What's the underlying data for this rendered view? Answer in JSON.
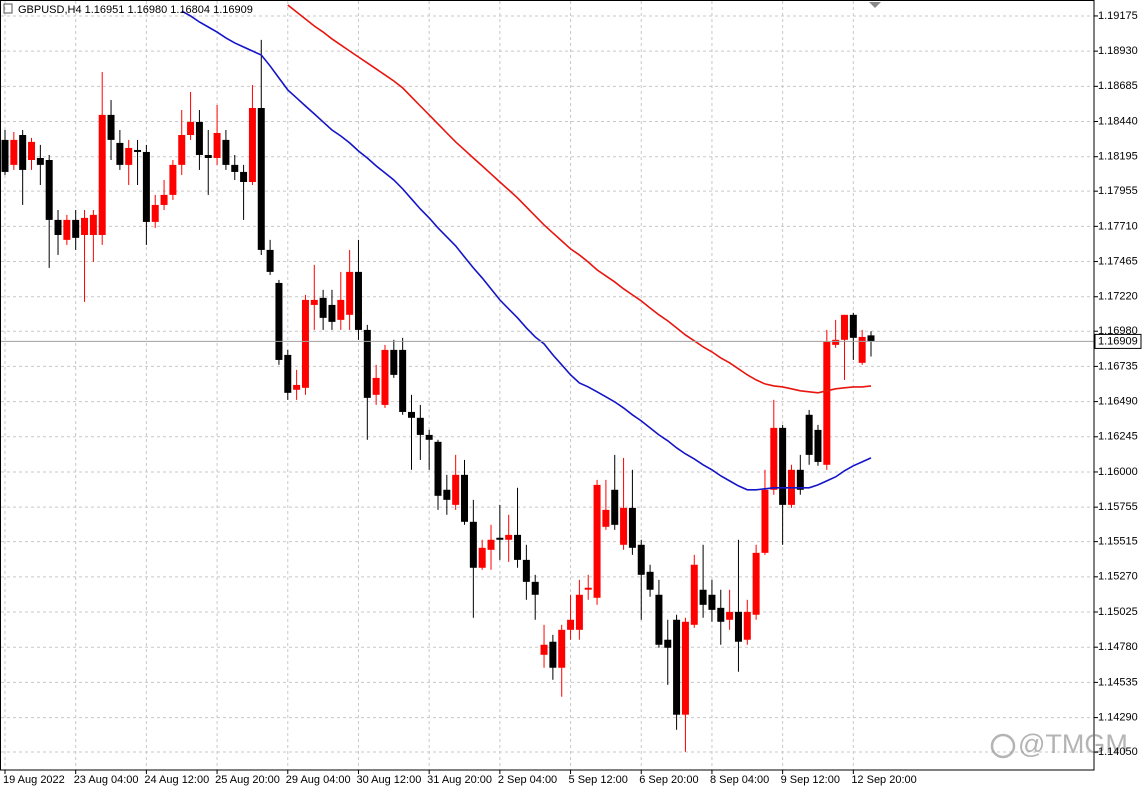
{
  "chart_data": {
    "type": "candlestick",
    "title": "GBPUSD,H4  1.16951 1.16980 1.16804 1.16909",
    "categories": [
      "19 Aug 2022",
      null,
      null,
      null,
      null,
      null,
      null,
      null,
      "23 Aug 04:00",
      null,
      null,
      null,
      null,
      null,
      null,
      null,
      "24 Aug 12:00",
      null,
      null,
      null,
      null,
      null,
      null,
      null,
      "25 Aug 20:00",
      null,
      null,
      null,
      null,
      null,
      null,
      null,
      "29 Aug 04:00",
      null,
      null,
      null,
      null,
      null,
      null,
      null,
      "30 Aug 12:00",
      null,
      null,
      null,
      null,
      null,
      null,
      null,
      "31 Aug 20:00",
      null,
      null,
      null,
      null,
      null,
      null,
      null,
      "2 Sep 04:00",
      null,
      null,
      null,
      null,
      null,
      null,
      null,
      "5 Sep 12:00",
      null,
      null,
      null,
      null,
      null,
      null,
      null,
      "6 Sep 20:00",
      null,
      null,
      null,
      null,
      null,
      null,
      null,
      "8 Sep 04:00",
      null,
      null,
      null,
      null,
      null,
      null,
      null,
      "9 Sep 12:00",
      null,
      null,
      null,
      null,
      null,
      null,
      null,
      "12 Sep 20:00",
      null,
      null
    ],
    "open": [
      1.18312,
      1.18138,
      1.18346,
      1.18172,
      1.18186,
      1.18172,
      1.17755,
      1.17616,
      1.17755,
      1.1765,
      1.1765,
      1.1765,
      1.18486,
      1.18291,
      1.18138,
      1.18242,
      1.18228,
      1.17741,
      1.17859,
      1.17929,
      1.18138,
      1.18346,
      1.18437,
      1.18207,
      1.18186,
      1.18312,
      1.18138,
      1.18089,
      1.18019,
      1.18534,
      1.17546,
      1.17316,
      1.16815,
      1.16572,
      1.16586,
      1.17163,
      1.17212,
      1.17163,
      1.17059,
      1.17094,
      1.17393,
      1.16989,
      1.16537,
      1.16467,
      1.1685,
      1.1685,
      1.16418,
      1.16377,
      1.16258,
      1.1621,
      1.15876,
      1.15771,
      1.1598,
      1.15653,
      1.15333,
      1.15458,
      1.15542,
      1.15528,
      1.15562,
      1.15388,
      1.15235,
      1.14727,
      1.14818,
      1.14637,
      1.14901,
      1.14901,
      1.1518,
      1.15124,
      1.15618,
      1.15876,
      1.15493,
      1.1575,
      1.15493,
      1.15305,
      1.15145,
      1.14832,
      1.14971,
      1.1431,
      1.14936,
      1.1518,
      1.15145,
      1.15054,
      1.14971,
      1.15026,
      1.14832,
      1.15006,
      1.15437,
      1.15876,
      1.16307,
      1.15771,
      1.16015,
      1.16398,
      1.16293,
      1.1605,
      1.16885,
      1.1692,
      1.17094,
      1.1676,
      1.16951
    ],
    "high": [
      1.18381,
      1.18367,
      1.18381,
      1.18326,
      1.18277,
      1.18207,
      1.17824,
      1.1779,
      1.17824,
      1.17824,
      1.17824,
      1.18785,
      1.1859,
      1.18381,
      1.18312,
      1.18312,
      1.18277,
      1.17929,
      1.18033,
      1.18172,
      1.1852,
      1.18646,
      1.1852,
      1.18381,
      1.18555,
      1.18381,
      1.18207,
      1.18138,
      1.18694,
      1.19008,
      1.17616,
      1.17337,
      1.1685,
      1.16711,
      1.17233,
      1.17442,
      1.17268,
      1.17268,
      1.17393,
      1.17546,
      1.17616,
      1.17024,
      1.16746,
      1.16885,
      1.1692,
      1.16934,
      1.16537,
      1.16467,
      1.16293,
      1.16224,
      1.1598,
      1.16119,
      1.16084,
      1.15806,
      1.15528,
      1.15632,
      1.15771,
      1.15702,
      1.1589,
      1.15493,
      1.15284,
      1.14936,
      1.14866,
      1.14936,
      1.15145,
      1.15249,
      1.15284,
      1.15945,
      1.15945,
      1.16119,
      1.16098,
      1.16015,
      1.15528,
      1.15354,
      1.15249,
      1.14971,
      1.15006,
      1.14985,
      1.15423,
      1.15493,
      1.15249,
      1.1518,
      1.1518,
      1.15528,
      1.1511,
      1.15493,
      1.16015,
      1.16502,
      1.16328,
      1.1605,
      1.16119,
      1.16432,
      1.16328,
      1.16989,
      1.17059,
      1.17094,
      1.17108,
      1.16989,
      1.1698
    ],
    "low": [
      1.18068,
      1.18103,
      1.17859,
      1.18103,
      1.17998,
      1.17421,
      1.17511,
      1.17581,
      1.17546,
      1.17184,
      1.17462,
      1.17581,
      1.18172,
      1.18103,
      1.17998,
      1.17998,
      1.17581,
      1.17699,
      1.17824,
      1.17894,
      1.18068,
      1.18312,
      1.18103,
      1.17929,
      1.18138,
      1.18103,
      1.18033,
      1.17755,
      1.17998,
      1.17511,
      1.17372,
      1.16746,
      1.16502,
      1.16502,
      1.16537,
      1.16989,
      1.16989,
      1.16989,
      1.16989,
      1.16989,
      1.1692,
      1.16224,
      1.16467,
      1.16446,
      1.16655,
      1.16398,
      1.16015,
      1.16084,
      1.16015,
      1.15736,
      1.15702,
      1.15736,
      1.15632,
      1.14985,
      1.15319,
      1.15319,
      1.15388,
      1.15374,
      1.15333,
      1.1511,
      1.14971,
      1.14637,
      1.14553,
      1.14435,
      1.14832,
      1.14832,
      1.1511,
      1.15075,
      1.15597,
      1.15597,
      1.15458,
      1.15423,
      1.14971,
      1.15131,
      1.14776,
      1.14518,
      1.14205,
      1.14052,
      1.14915,
      1.14985,
      1.14957,
      1.14797,
      1.14901,
      1.14609,
      1.14797,
      1.14971,
      1.15423,
      1.15841,
      1.15493,
      1.1575,
      1.15841,
      1.1605,
      1.16043,
      1.16015,
      1.16864,
      1.16641,
      1.1678,
      1.16746,
      1.16804
    ],
    "close": [
      1.18089,
      1.18312,
      1.18103,
      1.18298,
      1.18138,
      1.17755,
      1.1765,
      1.17755,
      1.1763,
      1.17769,
      1.1779,
      1.18486,
      1.18312,
      1.18138,
      1.18256,
      1.18228,
      1.17741,
      1.17859,
      1.17929,
      1.18138,
      1.18346,
      1.18437,
      1.18207,
      1.18186,
      1.1836,
      1.18138,
      1.18089,
      1.18019,
      1.18534,
      1.17546,
      1.17393,
      1.1678,
      1.16551,
      1.16606,
      1.17198,
      1.17198,
      1.17073,
      1.17045,
      1.17198,
      1.17393,
      1.16989,
      1.16516,
      1.16655,
      1.1685,
      1.16676,
      1.16418,
      1.16377,
      1.16258,
      1.16224,
      1.15834,
      1.15806,
      1.1598,
      1.15653,
      1.15333,
      1.15472,
      1.15528,
      1.15528,
      1.15562,
      1.15388,
      1.15235,
      1.15145,
      1.14797,
      1.14637,
      1.14901,
      1.14971,
      1.15145,
      1.15194,
      1.1591,
      1.15736,
      1.15632,
      1.1575,
      1.15472,
      1.15284,
      1.1518,
      1.14797,
      1.14776,
      1.1431,
      1.14957,
      1.15354,
      1.15075,
      1.1504,
      1.14957,
      1.15026,
      1.14818,
      1.15026,
      1.15437,
      1.15876,
      1.16307,
      1.15771,
      1.16015,
      1.15876,
      1.16119,
      1.1607,
      1.16906,
      1.1692,
      1.17094,
      1.16934,
      1.1694,
      1.16909
    ],
    "up_color": "#ff0000",
    "down_color": "#000000",
    "series": [
      {
        "color": "#e8150f",
        "values": [
          null,
          null,
          null,
          null,
          null,
          null,
          null,
          null,
          null,
          null,
          null,
          null,
          null,
          null,
          null,
          null,
          null,
          null,
          null,
          null,
          null,
          null,
          null,
          null,
          null,
          null,
          null,
          null,
          null,
          null,
          null,
          null,
          1.19251,
          1.19202,
          1.19154,
          1.19105,
          1.19063,
          1.19015,
          1.18973,
          1.18931,
          1.18889,
          1.18848,
          1.18806,
          1.18764,
          1.18722,
          1.18674,
          1.18611,
          1.18548,
          1.18486,
          1.18423,
          1.1836,
          1.18298,
          1.18242,
          1.18186,
          1.18131,
          1.18075,
          1.18019,
          1.17964,
          1.17908,
          1.17845,
          1.17783,
          1.1772,
          1.17664,
          1.17609,
          1.17553,
          1.17511,
          1.17462,
          1.17407,
          1.17365,
          1.17323,
          1.17275,
          1.17233,
          1.17191,
          1.17142,
          1.17094,
          1.17052,
          1.17003,
          1.16954,
          1.16913,
          1.16871,
          1.16836,
          1.16794,
          1.1676,
          1.16718,
          1.16676,
          1.16641,
          1.16613,
          1.16599,
          1.16592,
          1.16579,
          1.16565,
          1.16558,
          1.16551,
          1.16565,
          1.16579,
          1.16586,
          1.16592,
          1.16592,
          1.16599
        ]
      },
      {
        "color": "#1414c8",
        "values": [
          null,
          null,
          null,
          null,
          null,
          null,
          null,
          null,
          null,
          null,
          null,
          null,
          null,
          null,
          null,
          null,
          null,
          null,
          null,
          null,
          1.19209,
          1.19175,
          1.19133,
          1.19098,
          1.19063,
          1.19022,
          1.18987,
          1.18959,
          1.18931,
          1.18903,
          1.18827,
          1.18743,
          1.1866,
          1.18604,
          1.18548,
          1.18493,
          1.18437,
          1.18381,
          1.18339,
          1.18291,
          1.18235,
          1.18186,
          1.18131,
          1.18082,
          1.18033,
          1.17971,
          1.17901,
          1.17831,
          1.17769,
          1.17699,
          1.17636,
          1.17574,
          1.17497,
          1.17421,
          1.17351,
          1.17275,
          1.17198,
          1.17135,
          1.17073,
          1.17003,
          1.1694,
          1.16892,
          1.16815,
          1.16746,
          1.16676,
          1.1662,
          1.16592,
          1.16558,
          1.16523,
          1.16488,
          1.16446,
          1.16398,
          1.16356,
          1.16307,
          1.16258,
          1.16217,
          1.16168,
          1.16126,
          1.16091,
          1.1605,
          1.16015,
          1.15973,
          1.15938,
          1.15903,
          1.15876,
          1.15876,
          1.15883,
          1.1589,
          1.1589,
          1.1589,
          1.1589,
          1.1589,
          1.1591,
          1.15938,
          1.15966,
          1.16008,
          1.16043,
          1.1607,
          1.16098
        ]
      }
    ],
    "ylim": [
      1.13925,
      1.19286
    ],
    "yticks": [
      {
        "value": 1.19175,
        "label": "1.19175"
      },
      {
        "value": 1.1893,
        "label": "1.18930"
      },
      {
        "value": 1.18685,
        "label": "1.18685"
      },
      {
        "value": 1.1844,
        "label": "1.18440"
      },
      {
        "value": 1.18195,
        "label": "1.18195"
      },
      {
        "value": 1.17955,
        "label": "1.17955"
      },
      {
        "value": 1.1771,
        "label": "1.17710"
      },
      {
        "value": 1.17465,
        "label": "1.17465"
      },
      {
        "value": 1.1722,
        "label": "1.17220"
      },
      {
        "value": 1.1698,
        "label": "1.16980"
      },
      {
        "value": 1.16735,
        "label": "1.16735"
      },
      {
        "value": 1.1649,
        "label": "1.16490"
      },
      {
        "value": 1.16245,
        "label": "1.16245"
      },
      {
        "value": 1.16,
        "label": "1.16000"
      },
      {
        "value": 1.15755,
        "label": "1.15755"
      },
      {
        "value": 1.15515,
        "label": "1.15515"
      },
      {
        "value": 1.1527,
        "label": "1.15270"
      },
      {
        "value": 1.15025,
        "label": "1.15025"
      },
      {
        "value": 1.1478,
        "label": "1.14780"
      },
      {
        "value": 1.14535,
        "label": "1.14535"
      },
      {
        "value": 1.1429,
        "label": "1.14290"
      },
      {
        "value": 1.1405,
        "label": "1.14050"
      }
    ],
    "current_price": {
      "value": 1.16909,
      "label": "1.16909"
    },
    "grid": true,
    "watermark": "@TMGM"
  }
}
